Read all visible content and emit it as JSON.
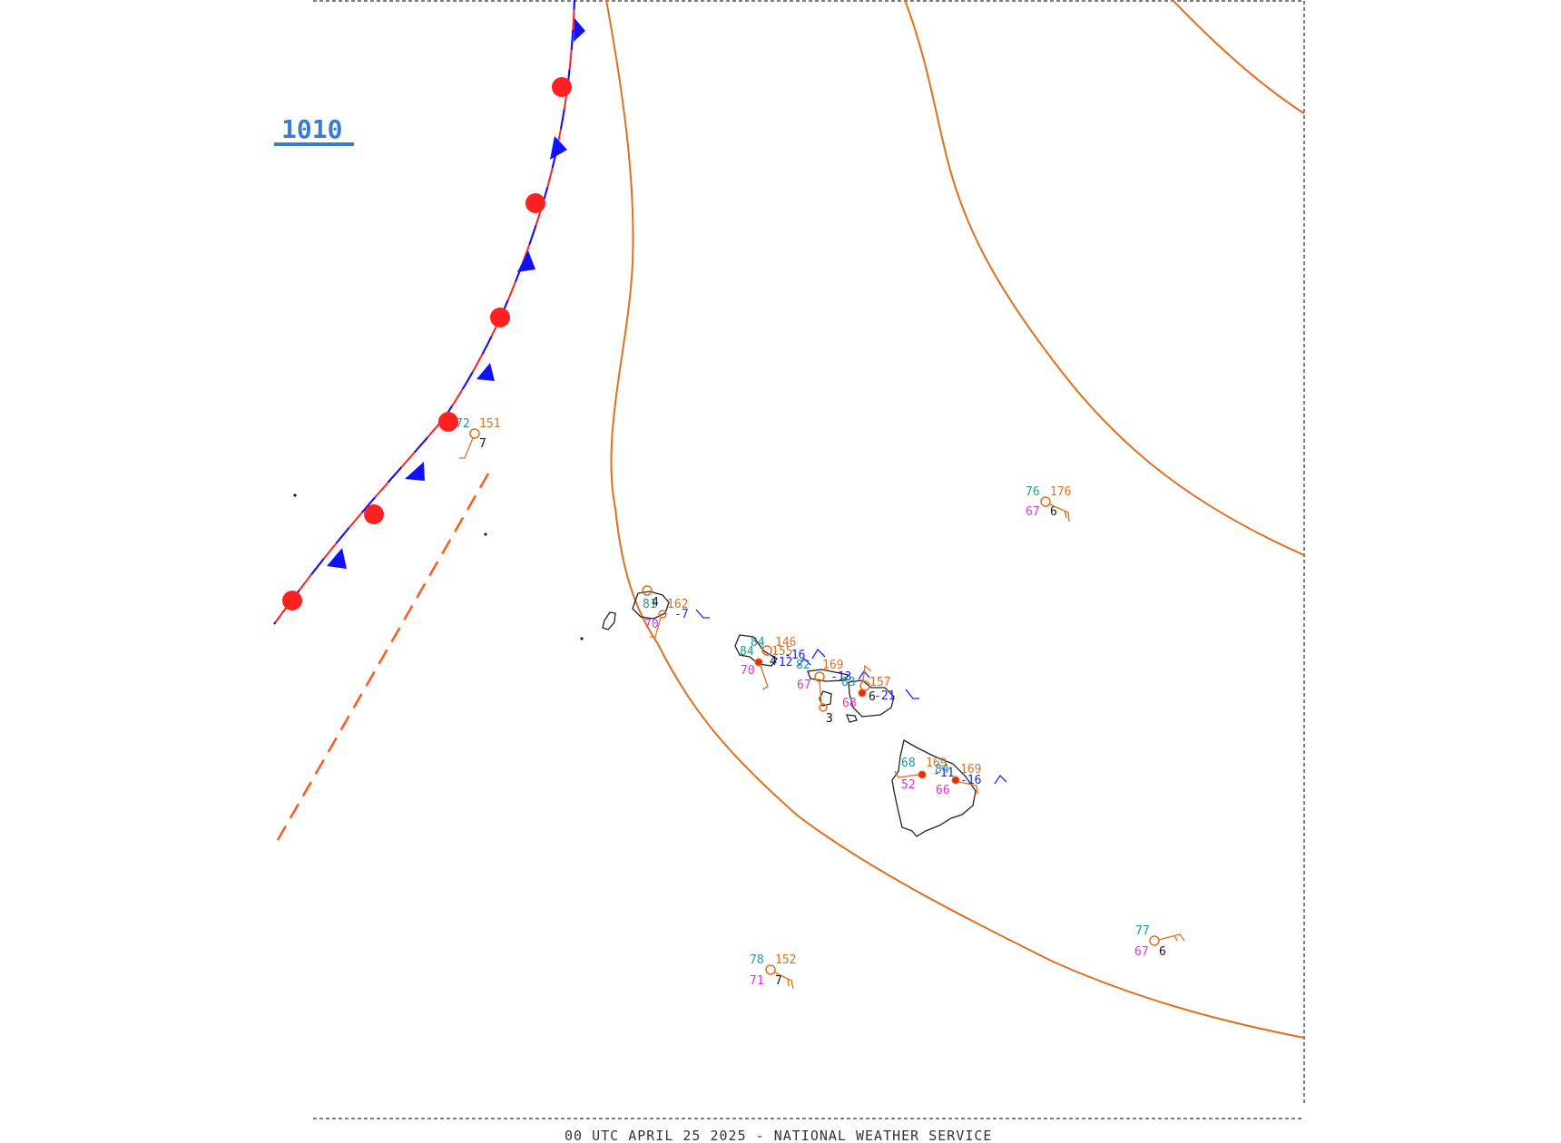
{
  "caption": "00 UTC APRIL 25 2025 - NATIONAL WEATHER SERVICE",
  "pressure_label": "1010",
  "colors": {
    "isobar": "#e07020",
    "warm_front": "#ff2020",
    "cold_front": "#1010ff",
    "trough": "#ff5a1e",
    "temperature": "#1a9aa0",
    "dewpoint": "#e030e0",
    "pressure": "#e07020",
    "tendency": "#2020ff",
    "coast": "#222222",
    "border": "#555555"
  },
  "stations": [
    {
      "temp": "72",
      "pres": "151",
      "vis": "7",
      "dew": "",
      "tend": ""
    },
    {
      "temp": "76",
      "pres": "176",
      "vis": "6",
      "dew": "67",
      "tend": ""
    },
    {
      "temp": "81",
      "pres": "162",
      "vis": "4",
      "dew": "70",
      "tend": "-7"
    },
    {
      "temp": "84",
      "pres": "146",
      "vis": "",
      "dew": "",
      "tend": ""
    },
    {
      "temp": "84",
      "pres": "155",
      "vis": "4",
      "dew": "70",
      "tend": "-16"
    },
    {
      "temp": "",
      "pres": "",
      "vis": "",
      "dew": "",
      "tend": "-12"
    },
    {
      "temp": "82",
      "pres": "169",
      "vis": "",
      "dew": "67",
      "tend": "-13"
    },
    {
      "temp": "83",
      "pres": "157",
      "vis": "6",
      "dew": "68",
      "tend": "-21"
    },
    {
      "temp": "",
      "pres": "",
      "vis": "3",
      "dew": "",
      "tend": ""
    },
    {
      "temp": "68",
      "pres": "169",
      "vis": "",
      "dew": "52",
      "tend": "-11"
    },
    {
      "temp": "84",
      "pres": "169",
      "vis": "",
      "dew": "66",
      "tend": "-16"
    },
    {
      "temp": "77",
      "pres": "",
      "vis": "6",
      "dew": "67",
      "tend": ""
    },
    {
      "temp": "78",
      "pres": "152",
      "vis": "7",
      "dew": "71",
      "tend": ""
    }
  ]
}
